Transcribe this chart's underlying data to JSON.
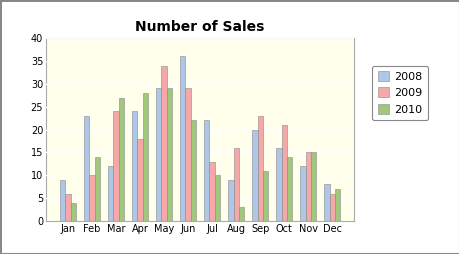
{
  "title": "Number of Sales",
  "months": [
    "Jan",
    "Feb",
    "Mar",
    "Apr",
    "May",
    "Jun",
    "Jul",
    "Aug",
    "Sep",
    "Oct",
    "Nov",
    "Dec"
  ],
  "series": {
    "2008": [
      9,
      23,
      12,
      24,
      29,
      36,
      22,
      9,
      20,
      16,
      12,
      8
    ],
    "2009": [
      6,
      10,
      24,
      18,
      34,
      29,
      13,
      16,
      23,
      21,
      15,
      6
    ],
    "2010": [
      4,
      14,
      27,
      28,
      29,
      22,
      10,
      3,
      11,
      14,
      15,
      7
    ]
  },
  "colors": {
    "2008": "#aec6e8",
    "2009": "#f4a8a8",
    "2010": "#9fc87a"
  },
  "legend_labels": [
    "2008",
    "2009",
    "2010"
  ],
  "ylim": [
    0,
    40
  ],
  "yticks": [
    0,
    5,
    10,
    15,
    20,
    25,
    30,
    35,
    40
  ],
  "plot_bg_color": "#ffffec",
  "fig_bg_color": "#ffffff",
  "title_fontsize": 10,
  "tick_fontsize": 7,
  "legend_fontsize": 8,
  "bar_width": 0.22,
  "bar_edge_color": "#888888",
  "bar_edge_lw": 0.4,
  "grid_color": "#ffffff",
  "grid_lw": 0.9,
  "spine_color": "#aaaaaa",
  "spine_lw": 0.8
}
